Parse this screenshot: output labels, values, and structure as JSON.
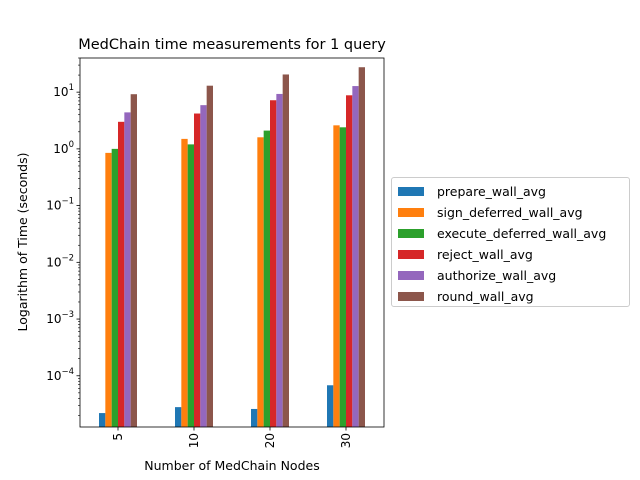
{
  "chart_data": {
    "type": "bar",
    "title": "MedChain time measurements for 1 query",
    "xlabel": "Number of MedChain Nodes",
    "ylabel": "Logarithm of Time (seconds)",
    "yscale": "log",
    "ylim": [
      1.25e-05,
      40
    ],
    "yticks": [
      {
        "value": 0.0001,
        "base": "10",
        "exp": "−4"
      },
      {
        "value": 0.001,
        "base": "10",
        "exp": "−3"
      },
      {
        "value": 0.01,
        "base": "10",
        "exp": "−2"
      },
      {
        "value": 0.1,
        "base": "10",
        "exp": "−1"
      },
      {
        "value": 1,
        "base": "10",
        "exp": "0"
      },
      {
        "value": 10,
        "base": "10",
        "exp": "1"
      }
    ],
    "categories": [
      "5",
      "10",
      "20",
      "30"
    ],
    "legend_position": "right",
    "series": [
      {
        "name": "prepare_wall_avg",
        "color": "#1f77b4",
        "values": [
          2.2e-05,
          2.8e-05,
          2.6e-05,
          6.8e-05
        ]
      },
      {
        "name": "sign_deferred_wall_avg",
        "color": "#ff7f0e",
        "values": [
          0.85,
          1.5,
          1.6,
          2.6
        ]
      },
      {
        "name": "execute_deferred_wall_avg",
        "color": "#2ca02c",
        "values": [
          1.0,
          1.2,
          2.1,
          2.4
        ]
      },
      {
        "name": "reject_wall_avg",
        "color": "#d62728",
        "values": [
          3.0,
          4.2,
          7.2,
          8.8
        ]
      },
      {
        "name": "authorize_wall_avg",
        "color": "#9467bd",
        "values": [
          4.4,
          5.9,
          9.3,
          12.8
        ]
      },
      {
        "name": "round_wall_avg",
        "color": "#8c564b",
        "values": [
          9.2,
          13.0,
          20.5,
          27.5
        ]
      }
    ]
  }
}
